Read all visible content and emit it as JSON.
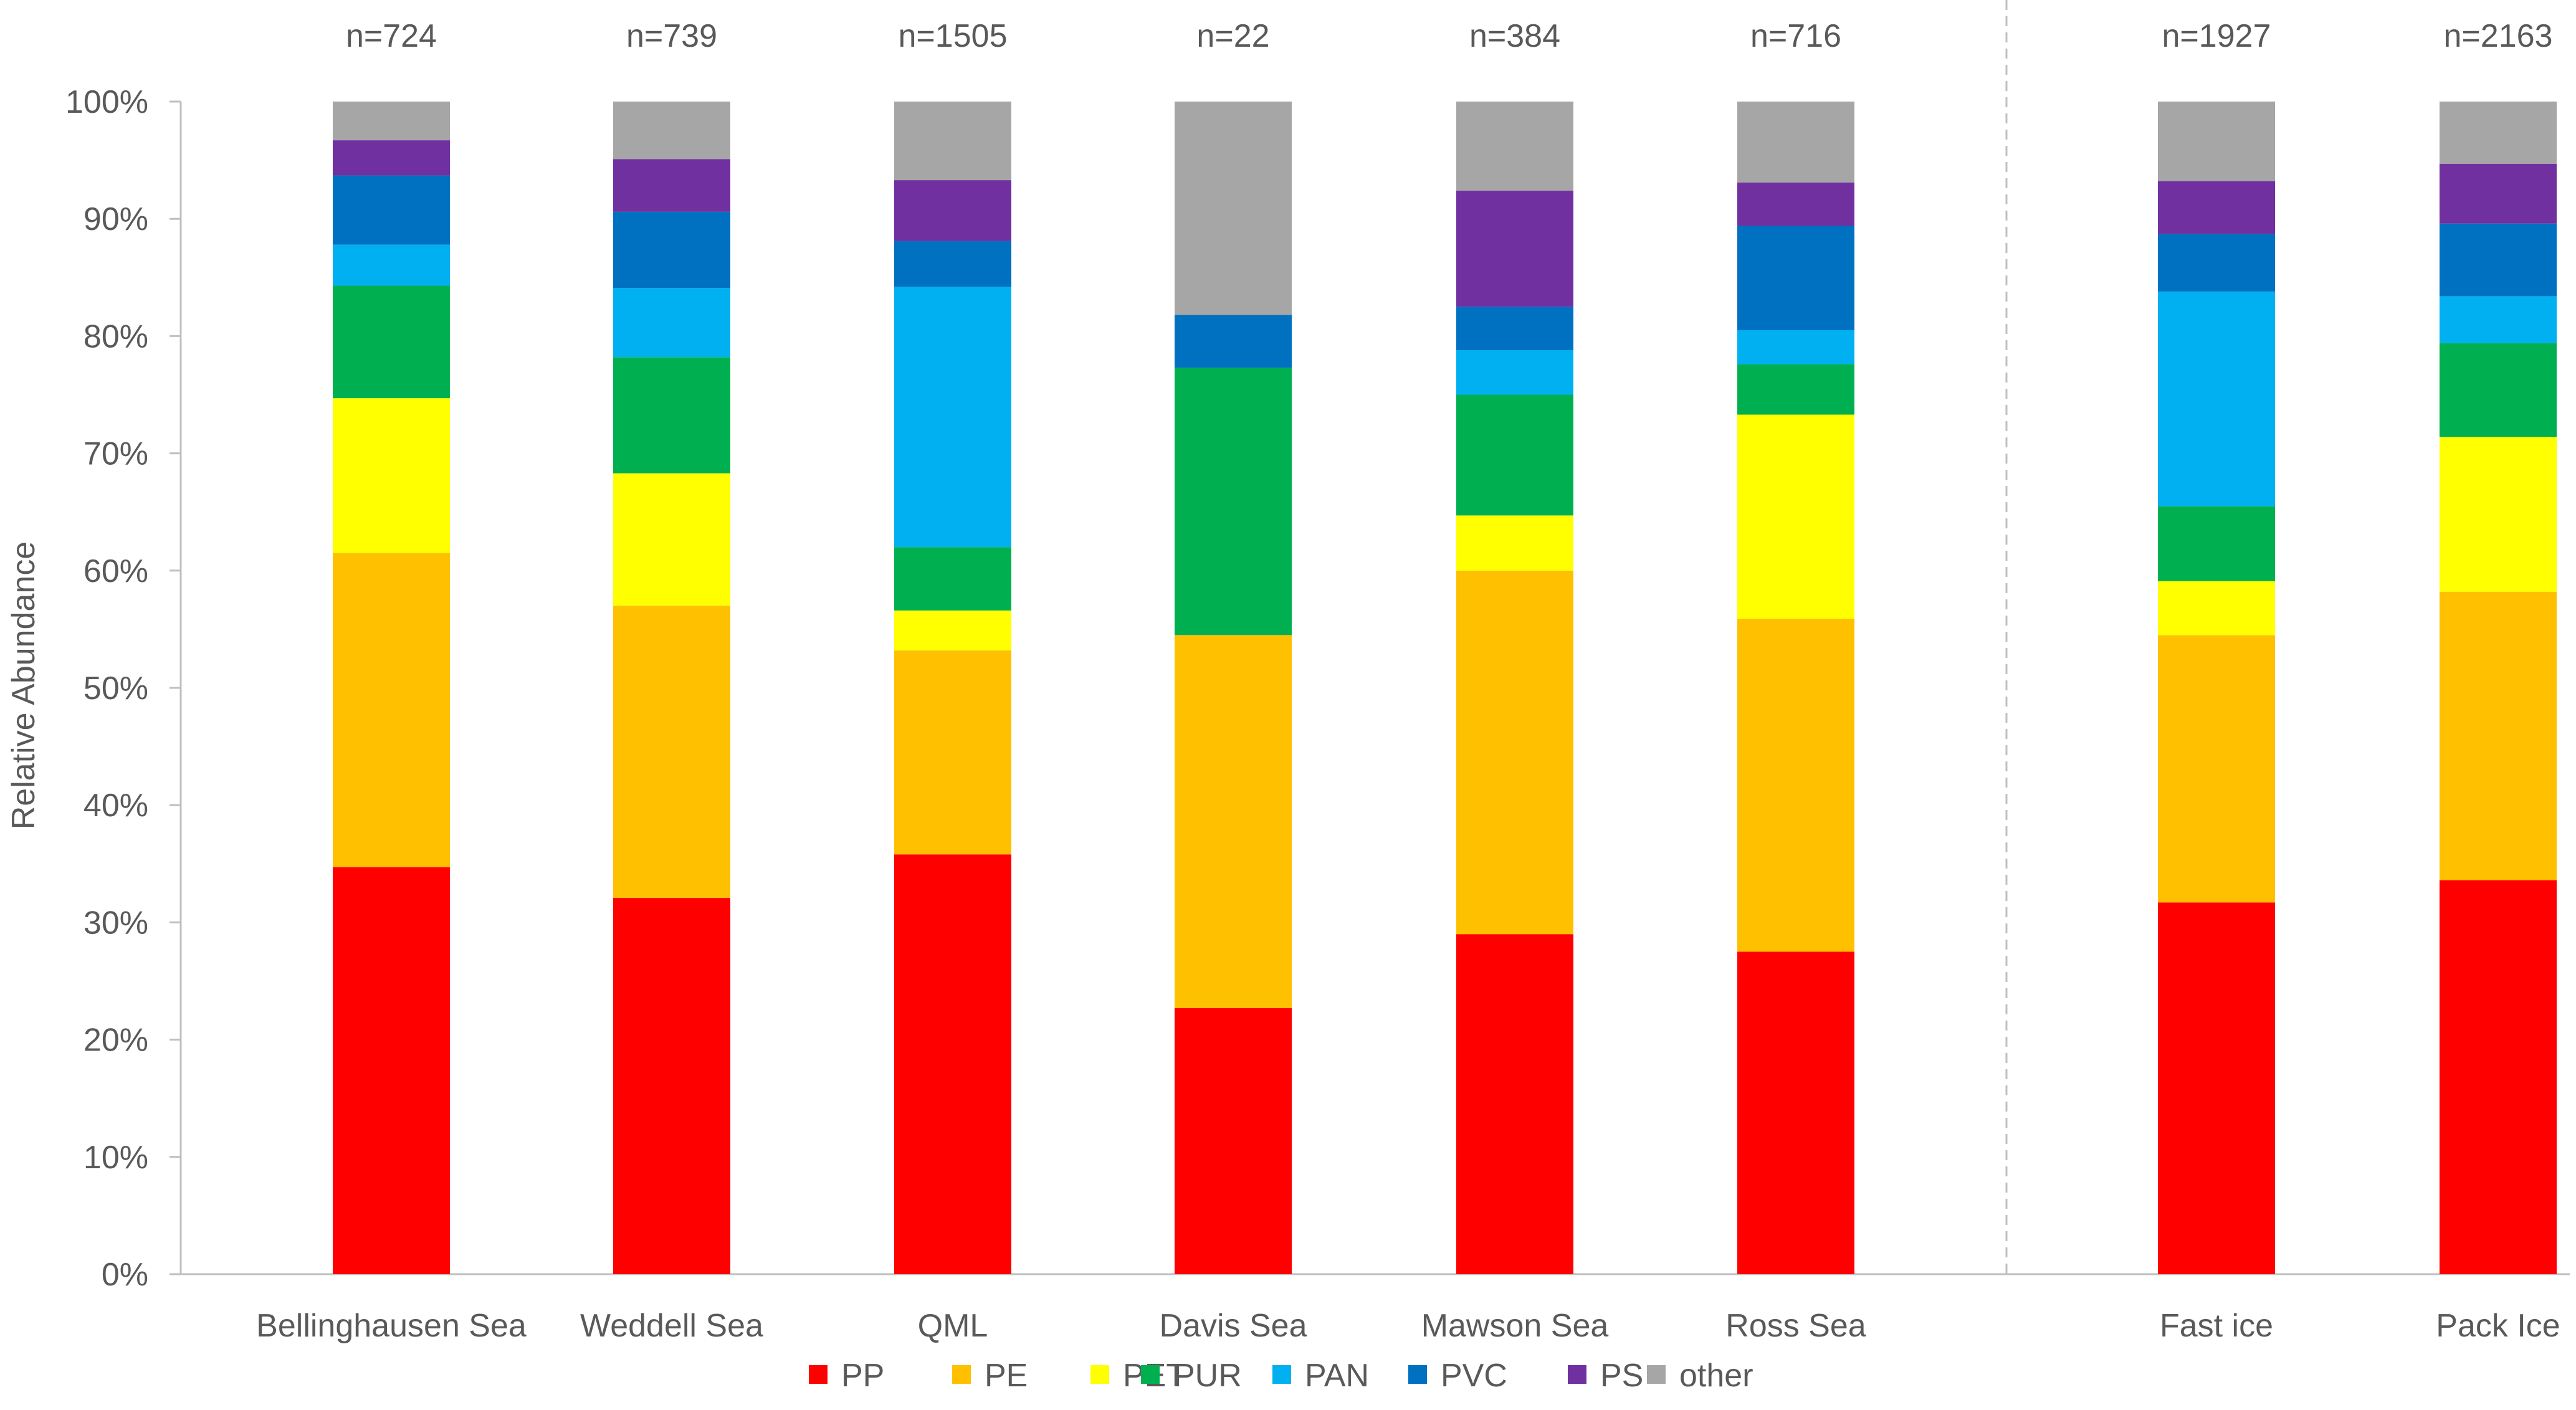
{
  "chart_data": {
    "type": "bar",
    "stacked": true,
    "percent": true,
    "ylabel": "Relative Abundance",
    "ylim": [
      0,
      100
    ],
    "yticks": [
      "0%",
      "10%",
      "20%",
      "30%",
      "40%",
      "50%",
      "60%",
      "70%",
      "80%",
      "90%",
      "100%"
    ],
    "grid": false,
    "legend_position": "bottom",
    "separator_after_category": "Ross Sea",
    "categories": [
      "Bellinghausen Sea",
      "Weddell Sea",
      "QML",
      "Davis Sea",
      "Mawson Sea",
      "Ross Sea",
      "Fast ice",
      "Pack Ice"
    ],
    "sample_sizes": [
      "n=724",
      "n=739",
      "n=1505",
      "n=22",
      "n=384",
      "n=716",
      "n=1927",
      "n=2163"
    ],
    "series": [
      {
        "name": "PP",
        "color": "#ff0000",
        "values": [
          34.7,
          32.1,
          35.8,
          22.7,
          29.0,
          27.5,
          31.7,
          33.6
        ]
      },
      {
        "name": "PE",
        "color": "#ffc000",
        "values": [
          26.8,
          24.9,
          17.4,
          31.8,
          31.0,
          28.4,
          22.8,
          24.6
        ]
      },
      {
        "name": "PET",
        "color": "#ffff00",
        "values": [
          13.2,
          11.3,
          3.4,
          0.0,
          4.7,
          17.4,
          4.6,
          13.2
        ]
      },
      {
        "name": "PUR",
        "color": "#00b050",
        "values": [
          9.6,
          9.9,
          5.4,
          22.8,
          10.3,
          4.3,
          6.4,
          8.0
        ]
      },
      {
        "name": "PAN",
        "color": "#00b0f0",
        "values": [
          3.5,
          5.9,
          22.2,
          0.0,
          3.8,
          2.9,
          18.3,
          4.0
        ]
      },
      {
        "name": "PVC",
        "color": "#0070c0",
        "values": [
          5.9,
          6.5,
          3.9,
          4.5,
          3.7,
          8.9,
          4.9,
          6.2
        ]
      },
      {
        "name": "PS",
        "color": "#7030a0",
        "values": [
          3.0,
          4.5,
          5.2,
          0.0,
          9.9,
          3.7,
          4.5,
          5.1
        ]
      },
      {
        "name": "other",
        "color": "#a6a6a6",
        "values": [
          3.3,
          4.9,
          6.7,
          18.2,
          7.6,
          6.9,
          6.8,
          5.3
        ]
      }
    ]
  }
}
